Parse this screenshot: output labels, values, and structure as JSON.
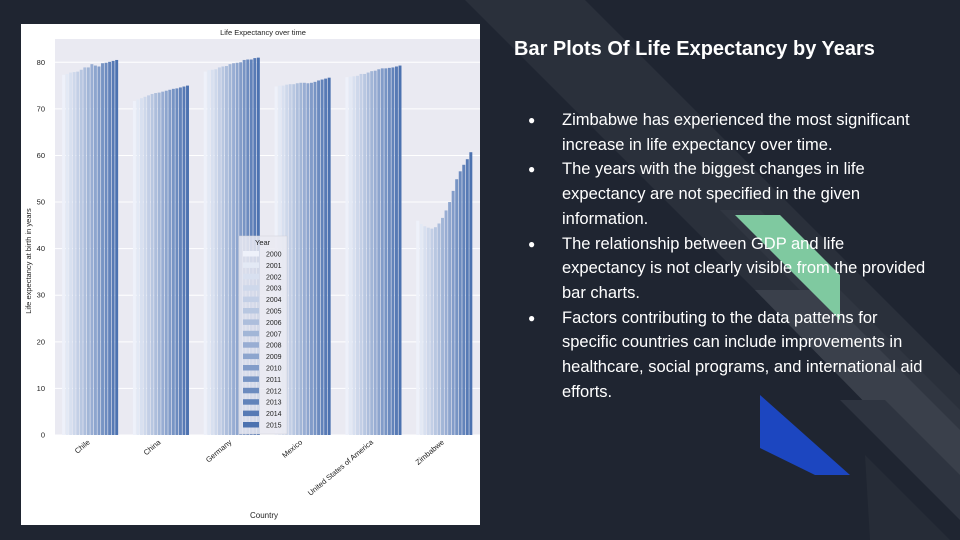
{
  "slide": {
    "title": "Bar Plots Of Life Expectancy by Years",
    "bullets": [
      "Zimbabwe has experienced the most significant increase in life expectancy over time.",
      "The years with the biggest changes in life expectancy are not specified in the given information.",
      "The relationship between GDP and life expectancy is not clearly visible from the provided bar charts.",
      "Factors contributing to the data patterns for specific countries can include improvements in healthcare, social programs, and international aid efforts."
    ],
    "bullet_glyph": "●"
  },
  "colors": {
    "background": "#1f2531",
    "plot_background": "#eaeaf2",
    "bar_light": "#eef1fa",
    "bar_dark": "#4c72b0",
    "deco_green": "#7fc9a0",
    "deco_blue": "#1c46c0",
    "deco_gray": "#3a404b"
  },
  "chart_data": {
    "type": "bar",
    "title": "Life Expectancy over time",
    "xlabel": "Country",
    "ylabel": "Life expectancy at birth in years",
    "ylim": [
      0,
      85
    ],
    "yticks": [
      0,
      10,
      20,
      30,
      40,
      50,
      60,
      70,
      80
    ],
    "grid": true,
    "legend": {
      "title": "Year",
      "placement": "center"
    },
    "categories": [
      "Chile",
      "China",
      "Germany",
      "Mexico",
      "United States of America",
      "Zimbabwe"
    ],
    "series": [
      {
        "name": "2000",
        "values": [
          77.3,
          71.7,
          78.0,
          74.8,
          76.8,
          46.0
        ]
      },
      {
        "name": "2001",
        "values": [
          77.5,
          72.0,
          78.3,
          75.0,
          76.9,
          45.3
        ]
      },
      {
        "name": "2002",
        "values": [
          77.8,
          72.3,
          78.4,
          75.0,
          77.0,
          44.8
        ]
      },
      {
        "name": "2003",
        "values": [
          77.9,
          72.6,
          78.5,
          75.2,
          77.1,
          44.5
        ]
      },
      {
        "name": "2004",
        "values": [
          78.0,
          72.9,
          78.9,
          75.3,
          77.5,
          44.3
        ]
      },
      {
        "name": "2005",
        "values": [
          78.4,
          73.2,
          79.1,
          75.3,
          77.5,
          44.6
        ]
      },
      {
        "name": "2006",
        "values": [
          78.9,
          73.4,
          79.2,
          75.5,
          77.8,
          45.4
        ]
      },
      {
        "name": "2007",
        "values": [
          78.9,
          73.5,
          79.6,
          75.6,
          78.1,
          46.6
        ]
      },
      {
        "name": "2008",
        "values": [
          79.6,
          73.7,
          79.8,
          75.6,
          78.2,
          48.2
        ]
      },
      {
        "name": "2009",
        "values": [
          79.3,
          73.9,
          79.9,
          75.5,
          78.5,
          50.0
        ]
      },
      {
        "name": "2010",
        "values": [
          79.1,
          74.1,
          80.0,
          75.6,
          78.7,
          52.4
        ]
      },
      {
        "name": "2011",
        "values": [
          79.8,
          74.3,
          80.5,
          75.8,
          78.7,
          54.9
        ]
      },
      {
        "name": "2012",
        "values": [
          79.9,
          74.4,
          80.6,
          76.1,
          78.8,
          56.6
        ]
      },
      {
        "name": "2013",
        "values": [
          80.1,
          74.6,
          80.6,
          76.3,
          78.9,
          58.0
        ]
      },
      {
        "name": "2014",
        "values": [
          80.3,
          74.8,
          80.9,
          76.5,
          79.1,
          59.2
        ]
      },
      {
        "name": "2015",
        "values": [
          80.5,
          75.0,
          81.0,
          76.7,
          79.3,
          60.7
        ]
      }
    ]
  }
}
